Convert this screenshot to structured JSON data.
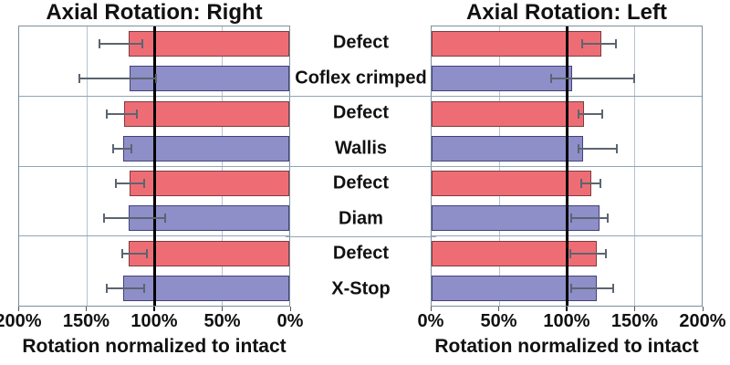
{
  "figure": {
    "background": "#ffffff"
  },
  "row_labels": [
    "Defect",
    "Coflex crimped",
    "Defect",
    "Wallis",
    "Defect",
    "Diam",
    "Defect",
    "X-Stop"
  ],
  "colors": {
    "defect_bar": "#ee6d74",
    "device_bar": "#8e8ec9",
    "reference_line": "#000000",
    "error_bar": "#5b6570",
    "gridline": "#b4c3d2",
    "group_separator": "#8fa6ba",
    "plot_border": "#78909c"
  },
  "chart_data": [
    {
      "type": "bar",
      "orientation": "horizontal",
      "title": "Axial Rotation: Right",
      "xlabel": "Rotation normalized to intact",
      "axis": {
        "min": 0,
        "max": 200,
        "direction": "reversed",
        "ticks": [
          "200%",
          "150%",
          "100%",
          "50%",
          "0%"
        ],
        "gridlines_pct": [
          50,
          150
        ],
        "reference_line_pct": 100
      },
      "categories": [
        "Defect",
        "Coflex crimped",
        "Defect",
        "Wallis",
        "Defect",
        "Diam",
        "Defect",
        "X-Stop"
      ],
      "values": [
        119,
        118,
        122,
        123,
        118,
        119,
        119,
        123
      ],
      "error_low": [
        108,
        98,
        112,
        116,
        107,
        91,
        105,
        107
      ],
      "error_high": [
        141,
        156,
        136,
        131,
        129,
        138,
        124,
        136
      ],
      "bar_style_alternation": [
        "defect",
        "device"
      ],
      "legend": "none",
      "grid": true
    },
    {
      "type": "bar",
      "orientation": "horizontal",
      "title": "Axial Rotation: Left",
      "xlabel": "Rotation normalized to intact",
      "axis": {
        "min": 0,
        "max": 200,
        "direction": "normal",
        "ticks": [
          "0%",
          "50%",
          "100%",
          "150%",
          "200%"
        ],
        "gridlines_pct": [
          50,
          150
        ],
        "reference_line_pct": 100
      },
      "categories": [
        "Defect",
        "Coflex crimped",
        "Defect",
        "Wallis",
        "Defect",
        "Diam",
        "Defect",
        "X-Stop"
      ],
      "values": [
        126,
        104,
        113,
        112,
        118,
        124,
        122,
        122
      ],
      "error_low": [
        111,
        88,
        108,
        108,
        110,
        103,
        102,
        103
      ],
      "error_high": [
        137,
        151,
        127,
        138,
        126,
        131,
        130,
        135
      ],
      "bar_style_alternation": [
        "defect",
        "device"
      ],
      "legend": "none",
      "grid": true
    }
  ]
}
